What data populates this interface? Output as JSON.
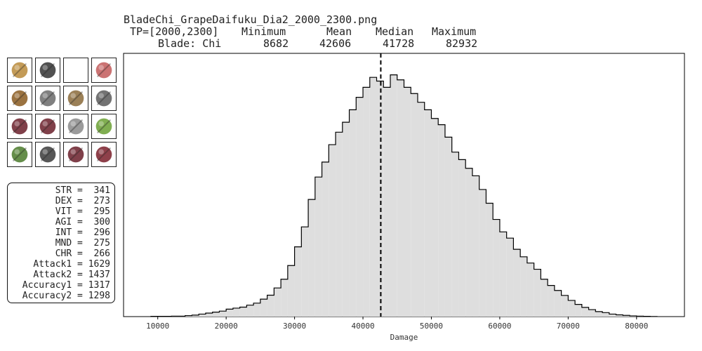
{
  "header": {
    "filename": "BladeChi_GrapeDaifuku_Dia2_2000_2300.png",
    "tp_label": "TP=[2000,2300]",
    "blade_label": "Blade: Chi",
    "columns": [
      {
        "name": "Minimum",
        "value": "8682"
      },
      {
        "name": "Mean",
        "value": "42606"
      },
      {
        "name": "Median",
        "value": "41728"
      },
      {
        "name": "Maximum",
        "value": "82932"
      }
    ]
  },
  "equipment": [
    {
      "name": "sword",
      "color": "#b8893a"
    },
    {
      "name": "staff",
      "color": "#333333"
    },
    {
      "name": "empty",
      "color": "#ffffff"
    },
    {
      "name": "crystal",
      "color": "#c25a5a"
    },
    {
      "name": "frame",
      "color": "#8a5a20"
    },
    {
      "name": "helmet",
      "color": "#6a6a6a"
    },
    {
      "name": "amulet",
      "color": "#8a6a3a"
    },
    {
      "name": "earring",
      "color": "#5a5a5a"
    },
    {
      "name": "gauntlet",
      "color": "#6a1f2a"
    },
    {
      "name": "gloves",
      "color": "#6a1f2a"
    },
    {
      "name": "ring",
      "color": "#8a8a8a"
    },
    {
      "name": "ring-green",
      "color": "#6aa032"
    },
    {
      "name": "cape",
      "color": "#4a7a2a"
    },
    {
      "name": "belt",
      "color": "#3a3a3a"
    },
    {
      "name": "legs",
      "color": "#6a1f2a"
    },
    {
      "name": "boots",
      "color": "#7a1f2a"
    }
  ],
  "stats": [
    {
      "label": "STR",
      "value": "341"
    },
    {
      "label": "DEX",
      "value": "273"
    },
    {
      "label": "VIT",
      "value": "295"
    },
    {
      "label": "AGI",
      "value": "300"
    },
    {
      "label": "INT",
      "value": "296"
    },
    {
      "label": "MND",
      "value": "275"
    },
    {
      "label": "CHR",
      "value": "266"
    },
    {
      "label": "Attack1",
      "value": "1629"
    },
    {
      "label": "Attack2",
      "value": "1437"
    },
    {
      "label": "Accuracy1",
      "value": "1317"
    },
    {
      "label": "Accuracy2",
      "value": "1298"
    }
  ],
  "chart_data": {
    "type": "histogram",
    "xlabel": "Damage",
    "ylabel": "",
    "xlim": [
      5000,
      87000
    ],
    "xticks": [
      10000,
      20000,
      30000,
      40000,
      50000,
      60000,
      70000,
      80000
    ],
    "bin_width": 1000,
    "bins_x": [
      9000,
      10000,
      11000,
      12000,
      13000,
      14000,
      15000,
      16000,
      17000,
      18000,
      19000,
      20000,
      21000,
      22000,
      23000,
      24000,
      25000,
      26000,
      27000,
      28000,
      29000,
      30000,
      31000,
      32000,
      33000,
      34000,
      35000,
      36000,
      37000,
      38000,
      39000,
      40000,
      41000,
      42000,
      43000,
      44000,
      45000,
      46000,
      47000,
      48000,
      49000,
      50000,
      51000,
      52000,
      53000,
      54000,
      55000,
      56000,
      57000,
      58000,
      59000,
      60000,
      61000,
      62000,
      63000,
      64000,
      65000,
      66000,
      67000,
      68000,
      69000,
      70000,
      71000,
      72000,
      73000,
      74000,
      75000,
      76000,
      77000,
      78000,
      79000,
      80000,
      81000,
      82000
    ],
    "bins_height": [
      0.1,
      0.1,
      0.1,
      0.2,
      0.2,
      0.4,
      0.6,
      1.0,
      1.4,
      1.8,
      2.2,
      3.0,
      3.4,
      3.8,
      4.6,
      5.4,
      7.0,
      8.6,
      11.5,
      15.0,
      20.5,
      28.0,
      36.0,
      47.0,
      56.0,
      62.0,
      69.0,
      74.0,
      78.0,
      83.0,
      88.0,
      92.0,
      96.0,
      94.5,
      92.0,
      97.0,
      95.0,
      92.0,
      89.5,
      86.0,
      83.0,
      79.5,
      77.0,
      72.0,
      66.0,
      63.0,
      59.5,
      56.5,
      51.0,
      45.5,
      39.0,
      34.0,
      31.5,
      27.0,
      24.0,
      21.5,
      19.0,
      15.0,
      12.5,
      10.5,
      8.5,
      6.5,
      4.9,
      3.7,
      2.8,
      2.0,
      1.6,
      1.0,
      0.7,
      0.5,
      0.3,
      0.2,
      0.1,
      0.05
    ],
    "mean_line": 42606,
    "fill": "#dedede",
    "stroke": "#000000",
    "grid": false
  }
}
